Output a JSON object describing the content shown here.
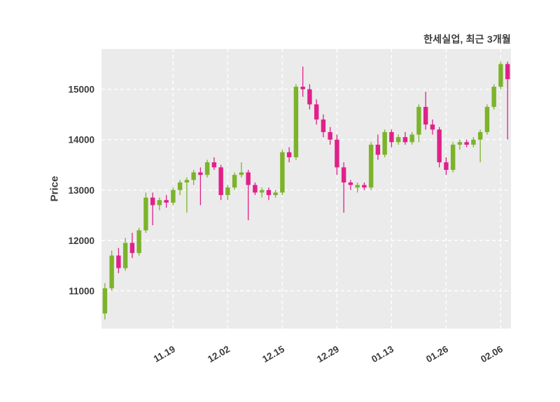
{
  "chart_data": {
    "type": "candlestick",
    "title": "한세실업, 최근 3개월",
    "ylabel": "Price",
    "plot_bg": "#ebebeb",
    "grid_color": "#ffffff",
    "up_color": "#7cb32b",
    "down_color": "#e0218a",
    "ylim": [
      10250,
      15800
    ],
    "yticks": [
      11000,
      12000,
      13000,
      14000,
      15000
    ],
    "xtick_indices": [
      10,
      18,
      26,
      34,
      42,
      50,
      58
    ],
    "xtick_labels": [
      "11.19",
      "12.02",
      "12.15",
      "12.29",
      "01.13",
      "01.26",
      "02.06"
    ],
    "candles": [
      [
        10550,
        11150,
        10430,
        11050
      ],
      [
        11050,
        11800,
        11000,
        11700
      ],
      [
        11700,
        11850,
        11350,
        11450
      ],
      [
        11450,
        12050,
        11400,
        11950
      ],
      [
        11950,
        12150,
        11650,
        11750
      ],
      [
        11750,
        12250,
        11700,
        12200
      ],
      [
        12200,
        12950,
        12150,
        12850
      ],
      [
        12850,
        12950,
        12300,
        12700
      ],
      [
        12700,
        12850,
        12600,
        12800
      ],
      [
        12800,
        12900,
        12650,
        12750
      ],
      [
        12750,
        13050,
        12700,
        13000
      ],
      [
        13000,
        13200,
        12900,
        13150
      ],
      [
        13150,
        13250,
        12550,
        13200
      ],
      [
        13200,
        13400,
        13100,
        13350
      ],
      [
        13350,
        13450,
        12700,
        13300
      ],
      [
        13300,
        13600,
        13250,
        13550
      ],
      [
        13550,
        13650,
        13400,
        13450
      ],
      [
        13450,
        13500,
        12800,
        12900
      ],
      [
        12900,
        13100,
        12800,
        13050
      ],
      [
        13050,
        13350,
        13000,
        13300
      ],
      [
        13300,
        13550,
        13250,
        13350
      ],
      [
        13350,
        13400,
        12400,
        13100
      ],
      [
        13100,
        13150,
        12900,
        12950
      ],
      [
        12950,
        13050,
        12850,
        13000
      ],
      [
        13000,
        13050,
        12800,
        12900
      ],
      [
        12900,
        13000,
        12850,
        12950
      ],
      [
        12950,
        13800,
        12900,
        13750
      ],
      [
        13750,
        13850,
        13550,
        13650
      ],
      [
        13650,
        15100,
        13600,
        15050
      ],
      [
        15050,
        15450,
        14850,
        15000
      ],
      [
        15000,
        15100,
        14600,
        14700
      ],
      [
        14700,
        14800,
        14300,
        14400
      ],
      [
        14400,
        14500,
        14050,
        14150
      ],
      [
        14150,
        14250,
        13900,
        14000
      ],
      [
        14000,
        14100,
        13300,
        13450
      ],
      [
        13450,
        13550,
        12550,
        13150
      ],
      [
        13150,
        13200,
        13000,
        13100
      ],
      [
        13050,
        13150,
        12950,
        13100
      ],
      [
        13100,
        13150,
        13000,
        13050
      ],
      [
        13050,
        13950,
        13000,
        13900
      ],
      [
        13900,
        14100,
        13600,
        13700
      ],
      [
        13700,
        14200,
        13650,
        14150
      ],
      [
        14150,
        14200,
        13850,
        13950
      ],
      [
        13950,
        14100,
        13900,
        14050
      ],
      [
        14050,
        14150,
        13900,
        13950
      ],
      [
        13950,
        14150,
        13900,
        14100
      ],
      [
        14100,
        14700,
        13950,
        14650
      ],
      [
        14650,
        14950,
        14200,
        14300
      ],
      [
        14300,
        14400,
        14100,
        14200
      ],
      [
        14200,
        14250,
        13450,
        13550
      ],
      [
        13550,
        13650,
        13300,
        13400
      ],
      [
        13400,
        13950,
        13350,
        13900
      ],
      [
        13900,
        14000,
        13800,
        13950
      ],
      [
        13950,
        14000,
        13850,
        13900
      ],
      [
        13900,
        14050,
        13850,
        14000
      ],
      [
        14000,
        14200,
        13550,
        14150
      ],
      [
        14150,
        14700,
        14100,
        14650
      ],
      [
        14650,
        15100,
        14600,
        15050
      ],
      [
        15050,
        15550,
        15000,
        15500
      ],
      [
        15500,
        15550,
        14000,
        15200
      ]
    ]
  }
}
